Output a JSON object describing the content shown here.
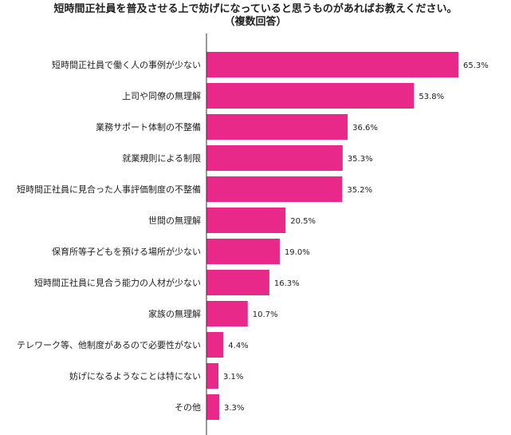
{
  "chart_data": {
    "type": "bar",
    "orientation": "horizontal",
    "title": "短時間正社員を普及させる上で妨げになっていると思うものがあればお教えください。",
    "subtitle": "（複数回答）",
    "categories": [
      "短時間正社員で働く人の事例が少ない",
      "上司や同僚の無理解",
      "業務サポート体制の不整備",
      "就業規則による制限",
      "短時間正社員に見合った人事評価制度の不整備",
      "世間の無理解",
      "保育所等子どもを預ける場所が少ない",
      "短時間正社員に見合う能力の人材が少ない",
      "家族の無理解",
      "テレワーク等、他制度があるので必要性がない",
      "妨げになるようなことは特にない",
      "その他"
    ],
    "values": [
      65.3,
      53.8,
      36.6,
      35.3,
      35.2,
      20.5,
      19.0,
      16.3,
      10.7,
      4.4,
      3.1,
      3.3
    ],
    "value_labels": [
      "65.3%",
      "53.8%",
      "36.6%",
      "35.3%",
      "35.2%",
      "20.5%",
      "19.0%",
      "16.3%",
      "10.7%",
      "4.4%",
      "3.1%",
      "3.3%"
    ],
    "xlim": [
      0,
      100
    ],
    "grid": false,
    "bar_color": "#e8298a",
    "axis_color": "#333333"
  }
}
